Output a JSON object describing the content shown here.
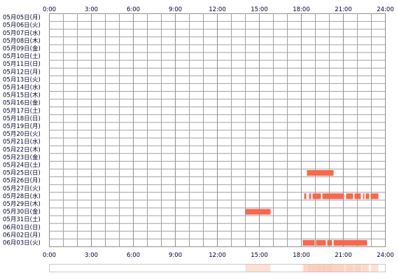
{
  "chart_data": {
    "type": "timeline",
    "categories": [
      "05月05日(月)",
      "05月06日(火)",
      "05月07日(水)",
      "05月08日(木)",
      "05月09日(金)",
      "05月10日(土)",
      "05月11日(日)",
      "05月12日(月)",
      "05月13日(火)",
      "05月14日(水)",
      "05月15日(木)",
      "05月16日(金)",
      "05月17日(土)",
      "05月18日(日)",
      "05月19日(月)",
      "05月20日(火)",
      "05月21日(水)",
      "05月22日(木)",
      "05月23日(金)",
      "05月24日(土)",
      "05月25日(日)",
      "05月26日(月)",
      "05月27日(火)",
      "05月28日(水)",
      "05月29日(木)",
      "05月30日(金)",
      "05月31日(土)",
      "06月01日(日)",
      "06月02日(月)",
      "06月03日(火)"
    ],
    "intervals": [
      [],
      [],
      [],
      [],
      [],
      [],
      [],
      [],
      [],
      [],
      [],
      [],
      [],
      [],
      [],
      [],
      [],
      [],
      [],
      [],
      [
        [
          18.4,
          20.3
        ]
      ],
      [],
      [],
      [
        [
          18.2,
          18.35
        ],
        [
          18.55,
          18.7
        ],
        [
          18.8,
          19.4
        ],
        [
          19.5,
          21.05
        ],
        [
          21.2,
          21.7
        ],
        [
          21.8,
          22.25
        ],
        [
          22.4,
          22.5
        ],
        [
          22.6,
          22.85
        ],
        [
          22.95,
          23.5
        ]
      ],
      [],
      [
        [
          14.0,
          15.8
        ]
      ],
      [],
      [],
      [],
      [
        [
          18.1,
          18.95
        ],
        [
          19.05,
          19.75
        ],
        [
          19.85,
          20.2
        ],
        [
          20.3,
          22.7
        ]
      ]
    ],
    "color": "#f4694f",
    "summary_color": "#fbc9b0",
    "xlim": [
      0,
      24
    ],
    "xticks": [
      {
        "value": 0,
        "label": "0:00"
      },
      {
        "value": 3,
        "label": "3:00"
      },
      {
        "value": 6,
        "label": "6:00"
      },
      {
        "value": 9,
        "label": "9:00"
      },
      {
        "value": 12,
        "label": "12:00"
      },
      {
        "value": 15,
        "label": "15:00"
      },
      {
        "value": 18,
        "label": "18:00"
      },
      {
        "value": 21,
        "label": "21:00"
      },
      {
        "value": 24,
        "label": "24:00"
      }
    ],
    "minor_xticks": [
      1,
      2,
      4,
      5,
      7,
      8,
      10,
      11,
      13,
      14,
      16,
      17,
      19,
      20,
      22,
      23
    ]
  }
}
